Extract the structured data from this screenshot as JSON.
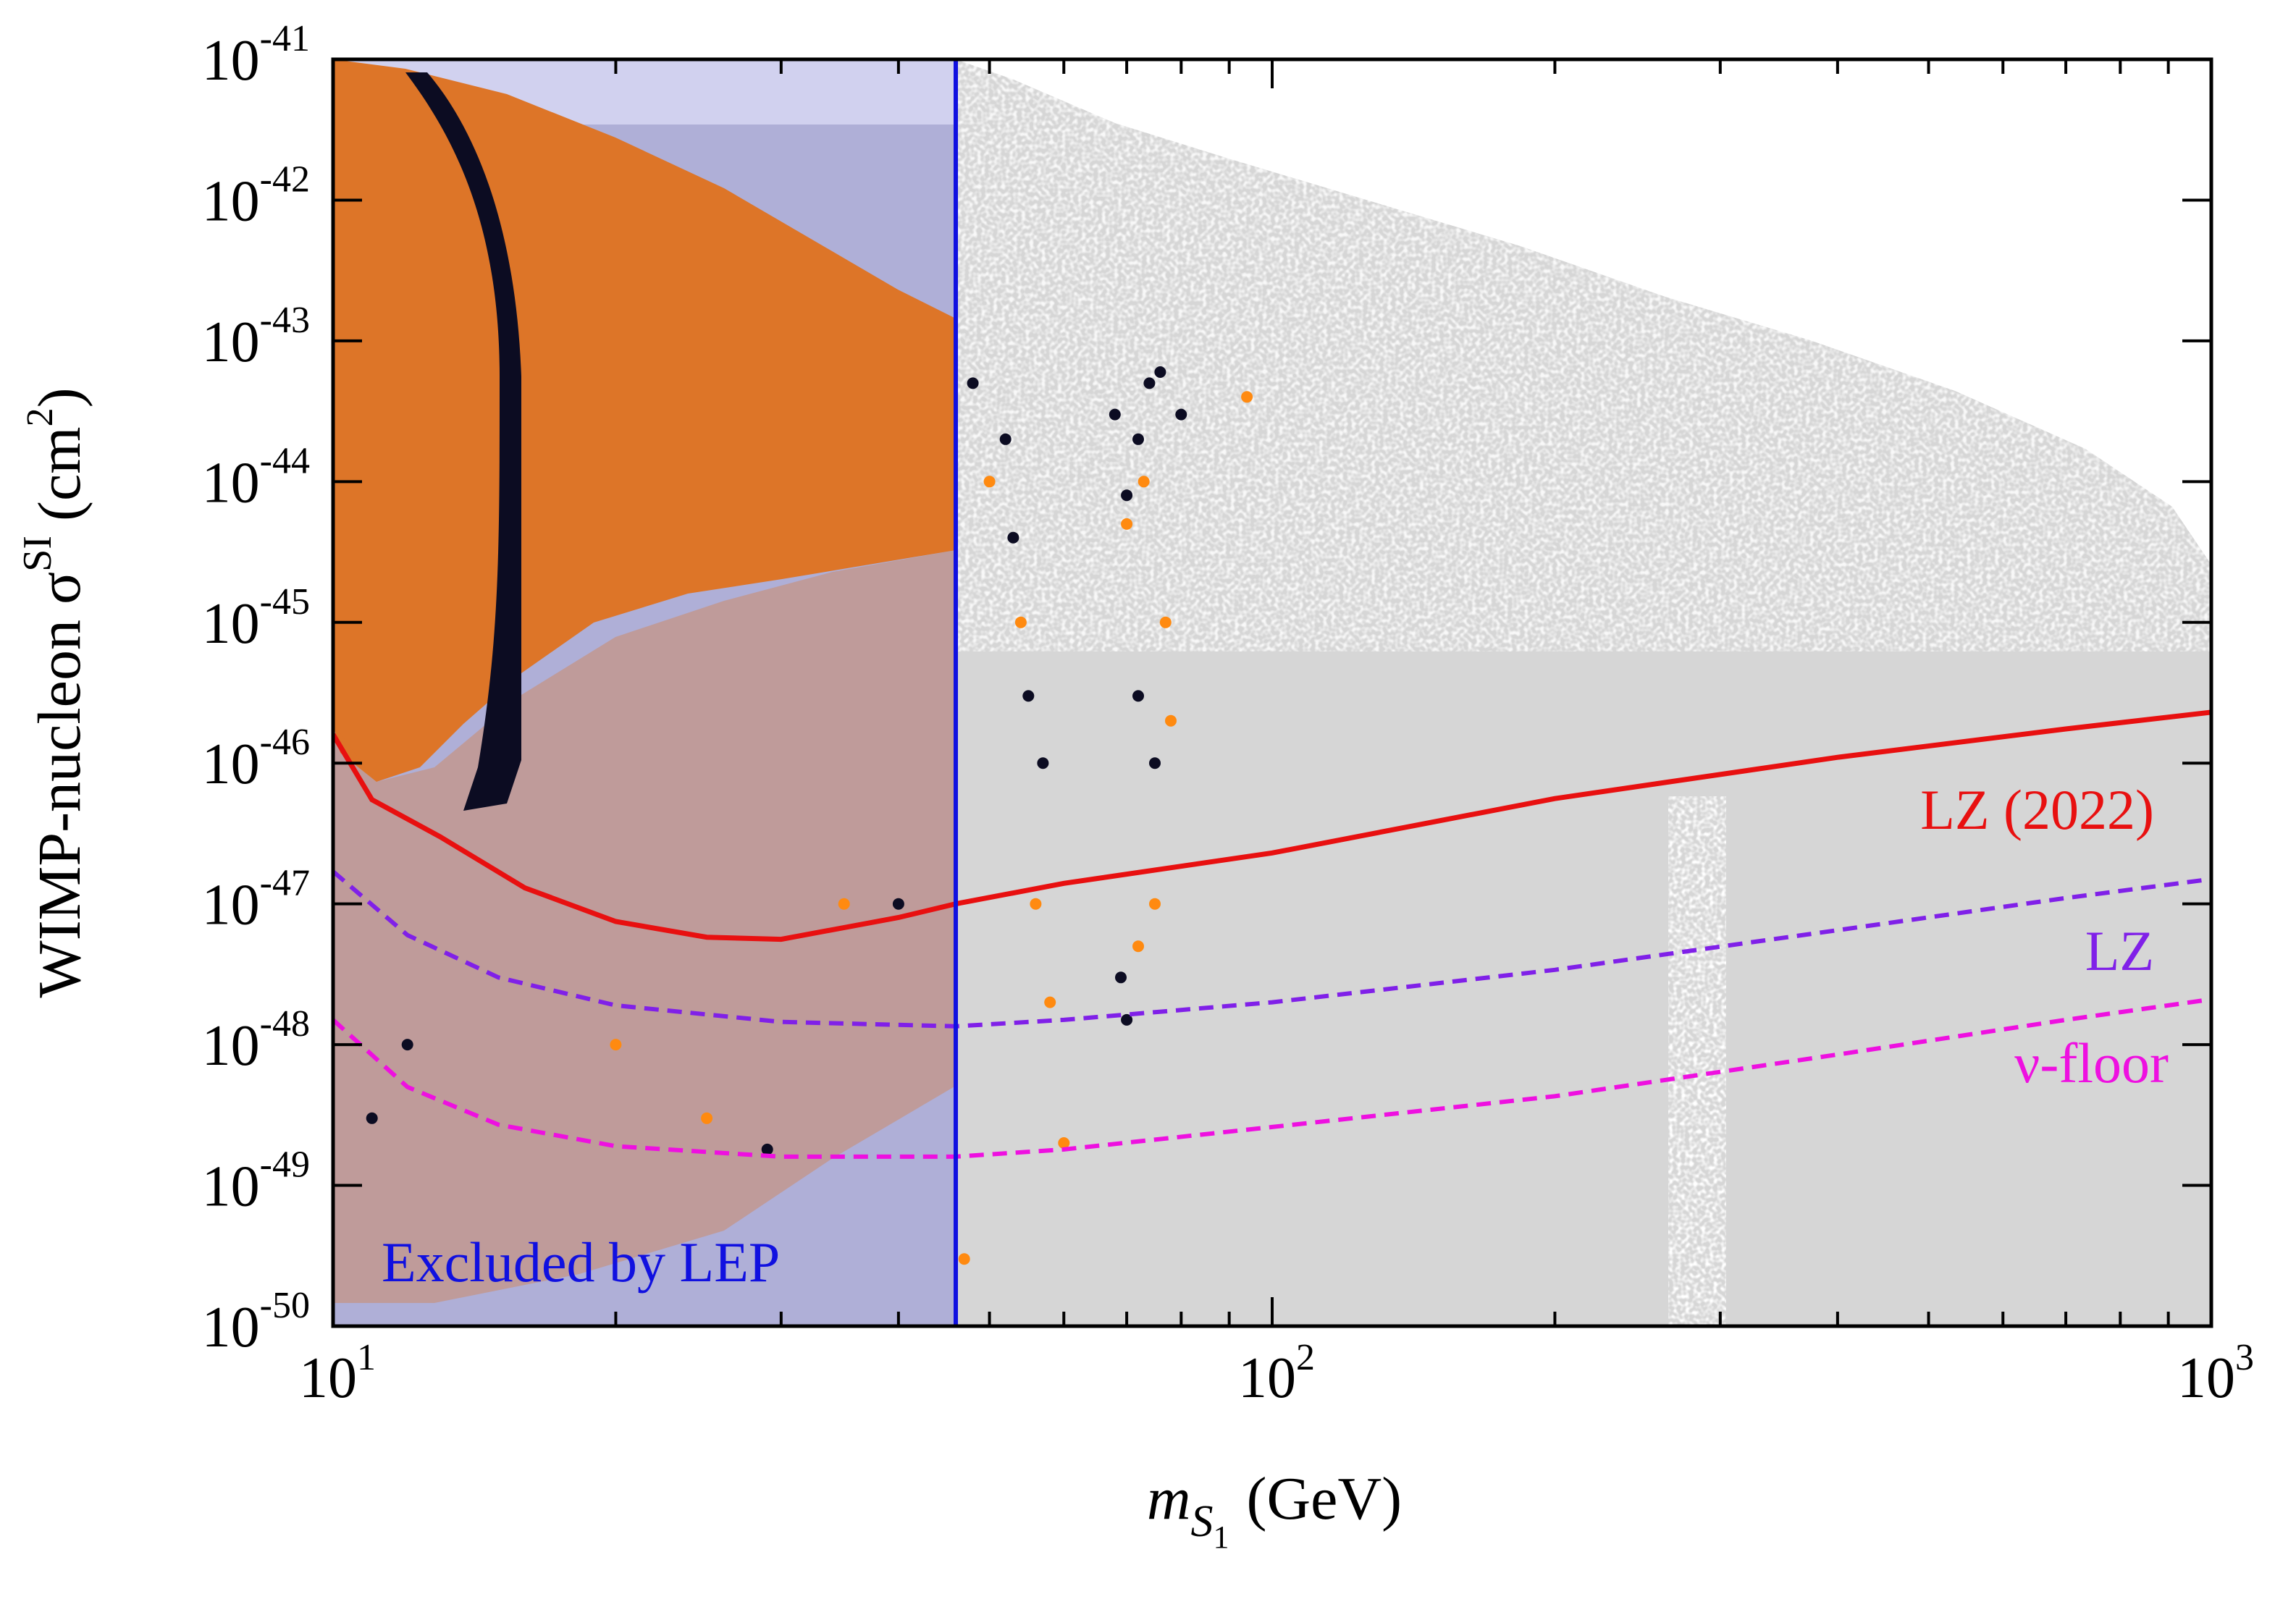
{
  "chart_data": {
    "type": "scatter",
    "xscale": "log",
    "yscale": "log",
    "xlim": [
      10,
      1000
    ],
    "ylim": [
      1e-50,
      1e-41
    ],
    "xlabel": {
      "main": "m",
      "sub": "S",
      "subsub": "1",
      "unit": "(GeV)"
    },
    "ylabel": {
      "main": "WIMP-nucleon σ",
      "sup": "SI",
      "unit_pre": "(cm",
      "unit_sup": "2",
      "unit_post": ")"
    },
    "x_ticks": [
      {
        "value": 10,
        "base": "10",
        "exp": "1"
      },
      {
        "value": 100,
        "base": "10",
        "exp": "2"
      },
      {
        "value": 1000,
        "base": "10",
        "exp": "3"
      }
    ],
    "y_ticks": [
      {
        "value": -41,
        "base": "10",
        "exp": "-41"
      },
      {
        "value": -42,
        "base": "10",
        "exp": "-42"
      },
      {
        "value": -43,
        "base": "10",
        "exp": "-43"
      },
      {
        "value": -44,
        "base": "10",
        "exp": "-44"
      },
      {
        "value": -45,
        "base": "10",
        "exp": "-45"
      },
      {
        "value": -46,
        "base": "10",
        "exp": "-46"
      },
      {
        "value": -47,
        "base": "10",
        "exp": "-47"
      },
      {
        "value": -48,
        "base": "10",
        "exp": "-48"
      },
      {
        "value": -49,
        "base": "10",
        "exp": "-49"
      },
      {
        "value": -50,
        "base": "10",
        "exp": "-50"
      }
    ],
    "excluded_region": {
      "label": "Excluded by LEP",
      "x_max": 46,
      "color": "#1010e0",
      "fill": "#9898d8"
    },
    "curves": [
      {
        "name": "LZ (2022)",
        "style": "solid",
        "color": "#e81010",
        "points": [
          [
            10,
            1.6e-46
          ],
          [
            11,
            5.5e-47
          ],
          [
            13,
            3e-47
          ],
          [
            16,
            1.3e-47
          ],
          [
            20,
            7.5e-48
          ],
          [
            25,
            5.8e-48
          ],
          [
            30,
            5.6e-48
          ],
          [
            40,
            8e-48
          ],
          [
            46,
            1e-47
          ],
          [
            60,
            1.4e-47
          ],
          [
            100,
            2.3e-47
          ],
          [
            200,
            5.6e-47
          ],
          [
            400,
            1.1e-46
          ],
          [
            700,
            1.75e-46
          ],
          [
            1000,
            2.3e-46
          ]
        ]
      },
      {
        "name": "LZ",
        "style": "dashed",
        "color": "#8020e8",
        "points": [
          [
            10,
            1.7e-47
          ],
          [
            12,
            6e-48
          ],
          [
            15,
            3e-48
          ],
          [
            20,
            1.9e-48
          ],
          [
            30,
            1.45e-48
          ],
          [
            46,
            1.35e-48
          ],
          [
            60,
            1.5e-48
          ],
          [
            100,
            2e-48
          ],
          [
            200,
            3.4e-48
          ],
          [
            400,
            6.5e-48
          ],
          [
            700,
            1.1e-47
          ],
          [
            1000,
            1.5e-47
          ]
        ]
      },
      {
        "name": "ν-floor",
        "style": "dashed",
        "color": "#ee10e0",
        "points": [
          [
            10,
            1.5e-48
          ],
          [
            12,
            5e-49
          ],
          [
            15,
            2.7e-49
          ],
          [
            20,
            1.9e-49
          ],
          [
            30,
            1.6e-49
          ],
          [
            46,
            1.6e-49
          ],
          [
            60,
            1.8e-49
          ],
          [
            100,
            2.6e-49
          ],
          [
            200,
            4.3e-49
          ],
          [
            400,
            8.5e-49
          ],
          [
            700,
            1.5e-48
          ],
          [
            1000,
            2.1e-48
          ]
        ]
      }
    ],
    "scatter_series": [
      {
        "name": "background scan",
        "color": "#d6d6d6"
      },
      {
        "name": "orange points (below LEP mass)",
        "color": "#dd7528"
      },
      {
        "name": "orange points (above LEP mass)",
        "color": "#ff8a10"
      },
      {
        "name": "black points",
        "color": "#0c0c22"
      }
    ],
    "sample_points": {
      "black": [
        [
          48,
          5e-44
        ],
        [
          52,
          2e-44
        ],
        [
          53,
          4e-45
        ],
        [
          55,
          3e-46
        ],
        [
          57,
          1e-46
        ],
        [
          68,
          3e-44
        ],
        [
          70,
          8e-45
        ],
        [
          72,
          2e-44
        ],
        [
          74,
          5e-44
        ],
        [
          76,
          6e-44
        ],
        [
          80,
          3e-44
        ],
        [
          72,
          3e-46
        ],
        [
          75,
          1e-46
        ],
        [
          70,
          1.5e-48
        ],
        [
          69,
          3e-48
        ],
        [
          29,
          1.8e-49
        ],
        [
          40,
          1e-47
        ],
        [
          12,
          1e-48
        ],
        [
          11,
          3e-49
        ]
      ],
      "orange": [
        [
          50,
          1e-44
        ],
        [
          54,
          1e-45
        ],
        [
          56,
          1e-47
        ],
        [
          58,
          2e-48
        ],
        [
          60,
          2e-49
        ],
        [
          70,
          5e-45
        ],
        [
          73,
          1e-44
        ],
        [
          77,
          1e-45
        ],
        [
          78,
          2e-46
        ],
        [
          75,
          1e-47
        ],
        [
          72,
          5e-48
        ],
        [
          94,
          4e-44
        ],
        [
          47,
          3e-50
        ],
        [
          20,
          1e-48
        ],
        [
          25,
          3e-49
        ],
        [
          35,
          1e-47
        ]
      ]
    }
  }
}
